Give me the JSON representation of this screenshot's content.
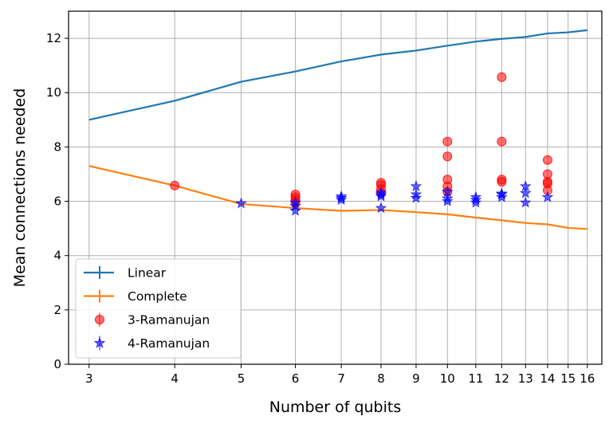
{
  "chart_data": {
    "type": "line",
    "xscale": "log",
    "xlabel": "Number of qubits",
    "ylabel": "Mean connections needed",
    "xlim": [
      2.8,
      16.8
    ],
    "ylim": [
      0,
      13
    ],
    "xticks": [
      3,
      4,
      5,
      6,
      7,
      8,
      9,
      10,
      11,
      12,
      13,
      14,
      15,
      16
    ],
    "xtick_labels": [
      "3",
      "4",
      "5",
      "6",
      "7",
      "8",
      "9",
      "10",
      "11",
      "12",
      "13",
      "14",
      "15",
      "16"
    ],
    "yticks": [
      0,
      2,
      4,
      6,
      8,
      10,
      12
    ],
    "ytick_labels": [
      "0",
      "2",
      "4",
      "6",
      "8",
      "10",
      "12"
    ],
    "grid": true,
    "legend_position": "lower-left",
    "series": [
      {
        "name": "Linear",
        "kind": "line",
        "color": "#1f77b4",
        "x": [
          3,
          4,
          5,
          6,
          7,
          8,
          9,
          10,
          11,
          12,
          13,
          14,
          15,
          16
        ],
        "y": [
          9.0,
          9.7,
          10.4,
          10.78,
          11.15,
          11.4,
          11.55,
          11.73,
          11.88,
          11.98,
          12.05,
          12.18,
          12.22,
          12.3
        ]
      },
      {
        "name": "Complete",
        "kind": "line",
        "color": "#ff7f0e",
        "x": [
          3,
          4,
          5,
          6,
          7,
          8,
          9,
          10,
          11,
          12,
          13,
          14,
          15,
          16
        ],
        "y": [
          7.3,
          6.58,
          5.9,
          5.75,
          5.65,
          5.68,
          5.6,
          5.52,
          5.4,
          5.3,
          5.2,
          5.15,
          5.02,
          4.98
        ]
      },
      {
        "name": "3-Ramanujan",
        "kind": "scatter",
        "marker": "circle",
        "color": "#ff0000",
        "x": [
          4,
          6,
          6,
          6,
          6,
          8,
          8,
          8,
          8,
          10,
          10,
          10,
          10,
          10,
          12,
          12,
          12,
          12,
          14,
          14,
          14,
          14,
          14
        ],
        "y": [
          6.58,
          6.25,
          6.15,
          6.05,
          5.95,
          6.68,
          6.6,
          6.45,
          6.3,
          8.2,
          7.65,
          6.8,
          6.55,
          6.35,
          10.57,
          8.2,
          6.8,
          6.72,
          7.52,
          7.0,
          6.72,
          6.65,
          6.4
        ]
      },
      {
        "name": "4-Ramanujan",
        "kind": "scatter",
        "marker": "star",
        "color": "#0000ff",
        "x": [
          5,
          6,
          6,
          6,
          7,
          7,
          7,
          8,
          8,
          8,
          8,
          9,
          9,
          9,
          10,
          10,
          10,
          11,
          11,
          11,
          12,
          12,
          12,
          13,
          13,
          13,
          14
        ],
        "y": [
          5.92,
          5.65,
          5.82,
          5.95,
          6.05,
          6.12,
          6.18,
          5.75,
          6.18,
          6.25,
          6.32,
          6.12,
          6.25,
          6.55,
          6.0,
          6.1,
          6.35,
          5.95,
          6.05,
          6.15,
          6.15,
          6.25,
          6.28,
          5.95,
          6.3,
          6.55,
          6.15
        ]
      }
    ]
  }
}
